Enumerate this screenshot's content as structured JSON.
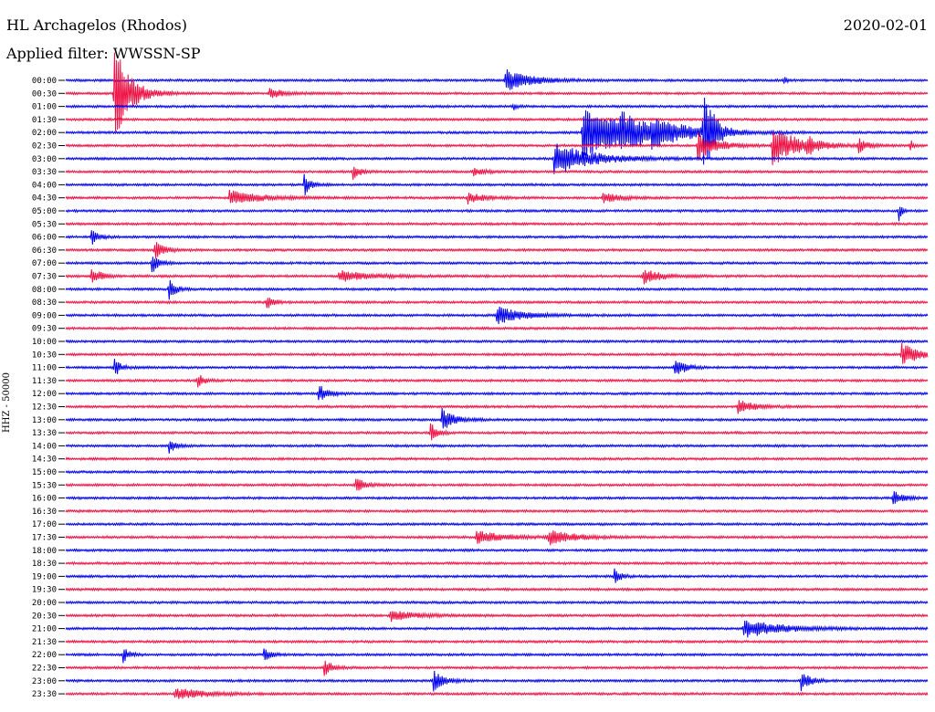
{
  "chart_data": {
    "type": "line",
    "title": "HL Archagelos (Rhodos)",
    "date": "2020-02-01",
    "subtitle": "Applied filter: WWSSN-SP",
    "ylabel": "HHZ - 50000",
    "row_labels": [
      "00:00",
      "00:30",
      "01:00",
      "01:30",
      "02:00",
      "02:30",
      "03:00",
      "03:30",
      "04:00",
      "04:30",
      "05:00",
      "05:30",
      "06:00",
      "06:30",
      "07:00",
      "07:30",
      "08:00",
      "08:30",
      "09:00",
      "09:30",
      "10:00",
      "10:30",
      "11:00",
      "11:30",
      "12:00",
      "12:30",
      "13:00",
      "13:30",
      "14:00",
      "14:30",
      "15:00",
      "15:30",
      "16:00",
      "16:30",
      "17:00",
      "17:30",
      "18:00",
      "18:30",
      "19:00",
      "19:30",
      "20:00",
      "20:30",
      "21:00",
      "21:30",
      "22:00",
      "22:30",
      "23:00",
      "23:30"
    ],
    "trace_colors": [
      "#0000ee",
      "#ee1144"
    ],
    "x_range_minutes": [
      0,
      30
    ],
    "events": [
      {
        "row": 0,
        "minute": 15.3,
        "amp": 12,
        "decay": 0.8
      },
      {
        "row": 0,
        "minute": 25.0,
        "amp": 4,
        "decay": 0.1
      },
      {
        "row": 1,
        "minute": 1.7,
        "amp": 55,
        "decay": 0.5
      },
      {
        "row": 1,
        "minute": 7.1,
        "amp": 5,
        "decay": 0.5
      },
      {
        "row": 2,
        "minute": 15.6,
        "amp": 4,
        "decay": 0.1
      },
      {
        "row": 4,
        "minute": 18.0,
        "amp": 30,
        "decay": 1.5
      },
      {
        "row": 4,
        "minute": 19.3,
        "amp": 12,
        "decay": 1.0
      },
      {
        "row": 4,
        "minute": 20.4,
        "amp": 10,
        "decay": 1.0
      },
      {
        "row": 4,
        "minute": 22.2,
        "amp": 60,
        "decay": 0.3
      },
      {
        "row": 5,
        "minute": 22.0,
        "amp": 16,
        "decay": 0.6
      },
      {
        "row": 5,
        "minute": 24.6,
        "amp": 22,
        "decay": 0.8
      },
      {
        "row": 5,
        "minute": 25.8,
        "amp": 8,
        "decay": 0.3
      },
      {
        "row": 5,
        "minute": 27.6,
        "amp": 7,
        "decay": 0.3
      },
      {
        "row": 5,
        "minute": 29.4,
        "amp": 6,
        "decay": 0.1
      },
      {
        "row": 6,
        "minute": 17.0,
        "amp": 18,
        "decay": 1.2
      },
      {
        "row": 7,
        "minute": 10.0,
        "amp": 10,
        "decay": 0.2
      },
      {
        "row": 7,
        "minute": 14.2,
        "amp": 5,
        "decay": 0.3
      },
      {
        "row": 8,
        "minute": 8.3,
        "amp": 12,
        "decay": 0.2
      },
      {
        "row": 9,
        "minute": 5.7,
        "amp": 8,
        "decay": 1.0
      },
      {
        "row": 9,
        "minute": 14.0,
        "amp": 6,
        "decay": 0.5
      },
      {
        "row": 9,
        "minute": 18.7,
        "amp": 6,
        "decay": 0.5
      },
      {
        "row": 10,
        "minute": 29.0,
        "amp": 10,
        "decay": 0.1
      },
      {
        "row": 12,
        "minute": 0.9,
        "amp": 10,
        "decay": 0.2
      },
      {
        "row": 13,
        "minute": 3.1,
        "amp": 10,
        "decay": 0.3
      },
      {
        "row": 14,
        "minute": 3.0,
        "amp": 12,
        "decay": 0.2
      },
      {
        "row": 15,
        "minute": 0.9,
        "amp": 10,
        "decay": 0.3
      },
      {
        "row": 15,
        "minute": 9.5,
        "amp": 6,
        "decay": 1.0
      },
      {
        "row": 15,
        "minute": 20.1,
        "amp": 8,
        "decay": 0.6
      },
      {
        "row": 16,
        "minute": 3.6,
        "amp": 12,
        "decay": 0.2
      },
      {
        "row": 17,
        "minute": 7.0,
        "amp": 8,
        "decay": 0.2
      },
      {
        "row": 18,
        "minute": 15.0,
        "amp": 10,
        "decay": 0.8
      },
      {
        "row": 21,
        "minute": 29.1,
        "amp": 14,
        "decay": 0.5
      },
      {
        "row": 22,
        "minute": 1.7,
        "amp": 10,
        "decay": 0.2
      },
      {
        "row": 22,
        "minute": 21.2,
        "amp": 12,
        "decay": 0.3
      },
      {
        "row": 23,
        "minute": 4.6,
        "amp": 8,
        "decay": 0.2
      },
      {
        "row": 24,
        "minute": 8.8,
        "amp": 10,
        "decay": 0.3
      },
      {
        "row": 25,
        "minute": 23.4,
        "amp": 8,
        "decay": 0.5
      },
      {
        "row": 26,
        "minute": 13.1,
        "amp": 12,
        "decay": 0.4
      },
      {
        "row": 27,
        "minute": 12.7,
        "amp": 12,
        "decay": 0.2
      },
      {
        "row": 28,
        "minute": 3.6,
        "amp": 8,
        "decay": 0.2
      },
      {
        "row": 31,
        "minute": 10.1,
        "amp": 8,
        "decay": 0.3
      },
      {
        "row": 32,
        "minute": 28.8,
        "amp": 8,
        "decay": 0.3
      },
      {
        "row": 35,
        "minute": 14.3,
        "amp": 8,
        "decay": 0.8
      },
      {
        "row": 35,
        "minute": 16.8,
        "amp": 8,
        "decay": 0.8
      },
      {
        "row": 38,
        "minute": 19.1,
        "amp": 8,
        "decay": 0.2
      },
      {
        "row": 41,
        "minute": 11.3,
        "amp": 6,
        "decay": 0.8
      },
      {
        "row": 42,
        "minute": 23.6,
        "amp": 10,
        "decay": 1.2
      },
      {
        "row": 44,
        "minute": 2.0,
        "amp": 8,
        "decay": 0.2
      },
      {
        "row": 44,
        "minute": 6.9,
        "amp": 8,
        "decay": 0.2
      },
      {
        "row": 45,
        "minute": 9.0,
        "amp": 8,
        "decay": 0.3
      },
      {
        "row": 46,
        "minute": 12.8,
        "amp": 12,
        "decay": 0.3
      },
      {
        "row": 46,
        "minute": 25.6,
        "amp": 10,
        "decay": 0.3
      },
      {
        "row": 47,
        "minute": 3.8,
        "amp": 6,
        "decay": 1.0
      }
    ]
  }
}
